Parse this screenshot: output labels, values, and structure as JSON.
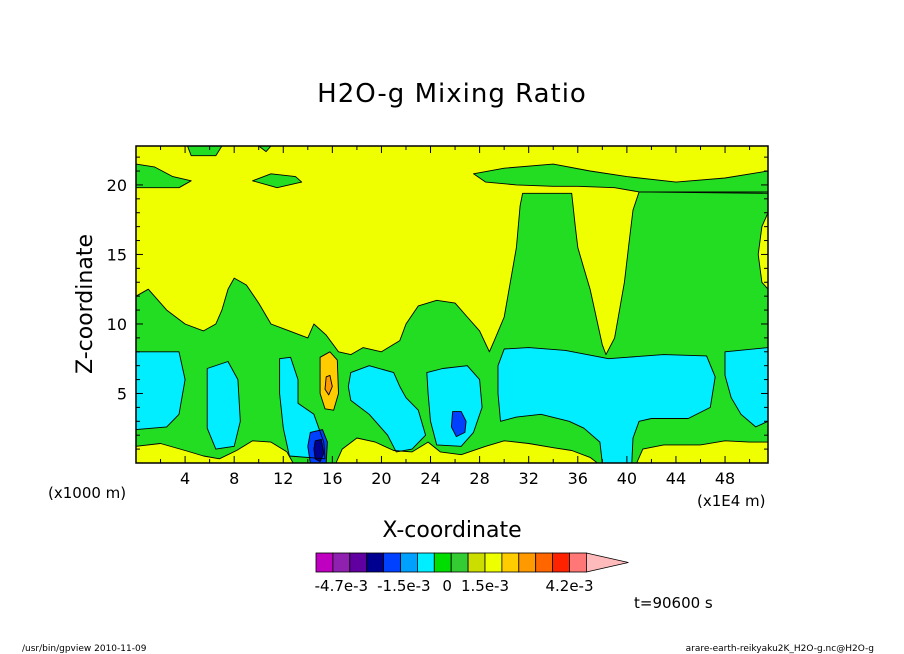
{
  "chart_data": {
    "type": "heatmap",
    "title": "H2O-g Mixing Ratio",
    "xlabel": "X-coordinate",
    "ylabel": "Z-coordinate",
    "x_unit_left": "(x1000 m)",
    "x_unit_right": "(x1E4 m)",
    "xlim": [
      0,
      51.5
    ],
    "ylim": [
      0,
      22.8
    ],
    "x_ticks": [
      "4",
      "8",
      "12",
      "16",
      "20",
      "24",
      "28",
      "32",
      "36",
      "40",
      "44",
      "48"
    ],
    "x_tick_values": [
      4,
      8,
      12,
      16,
      20,
      24,
      28,
      32,
      36,
      40,
      44,
      48
    ],
    "y_ticks": [
      "5",
      "10",
      "15",
      "20"
    ],
    "y_tick_values": [
      5,
      10,
      15,
      20
    ],
    "time_label": "t=90600 s",
    "colorbar": {
      "colors": [
        "#c000c0",
        "#9020b0",
        "#6000a0",
        "#000090",
        "#0040ff",
        "#00a0ff",
        "#00eeff",
        "#00dd00",
        "#33cc33",
        "#ccdd00",
        "#eeff00",
        "#ffcc00",
        "#ff9900",
        "#ff6600",
        "#ff2200",
        "#ff7777",
        "#ffbbbb"
      ],
      "tick_labels": [
        "-4.7e-3",
        "-1.5e-3",
        "0",
        "1.5e-3",
        "4.2e-3"
      ]
    },
    "regions": [
      {
        "label": "upper-yellow",
        "color": "#f0ff00",
        "points": [
          [
            0,
            22.8
          ],
          [
            51.5,
            22.8
          ],
          [
            51.5,
            0
          ],
          [
            0,
            0
          ]
        ]
      },
      {
        "label": "green-layer",
        "color": "#22dd22",
        "points": [
          [
            0,
            12
          ],
          [
            1,
            12.5
          ],
          [
            2.5,
            11
          ],
          [
            4,
            10
          ],
          [
            5.5,
            9.5
          ],
          [
            6.5,
            10
          ],
          [
            7,
            11
          ],
          [
            7.5,
            12.5
          ],
          [
            8,
            13.3
          ],
          [
            9,
            12.8
          ],
          [
            10,
            11.5
          ],
          [
            11,
            10
          ],
          [
            12.5,
            9.5
          ],
          [
            14,
            9
          ],
          [
            14.5,
            10
          ],
          [
            15.5,
            9.2
          ],
          [
            16.5,
            8
          ],
          [
            17.5,
            7.8
          ],
          [
            18.5,
            8.3
          ],
          [
            20,
            8
          ],
          [
            21.5,
            8.8
          ],
          [
            22,
            10
          ],
          [
            23,
            11.3
          ],
          [
            24.5,
            11.7
          ],
          [
            26,
            11.5
          ],
          [
            27,
            10.5
          ],
          [
            28,
            9.5
          ],
          [
            28.8,
            8
          ],
          [
            29.2,
            8.8
          ],
          [
            30,
            10.5
          ],
          [
            30.5,
            13
          ],
          [
            31,
            15.5
          ],
          [
            31.3,
            18.5
          ],
          [
            31.5,
            19.4
          ],
          [
            35.5,
            19.4
          ],
          [
            35.8,
            17
          ],
          [
            36,
            15.5
          ],
          [
            36.5,
            14
          ],
          [
            37,
            12.5
          ],
          [
            37.5,
            10.5
          ],
          [
            38,
            8.5
          ],
          [
            38.3,
            7.8
          ],
          [
            39,
            9
          ],
          [
            39.8,
            13
          ],
          [
            40.2,
            16
          ],
          [
            40.5,
            18.2
          ],
          [
            41,
            19.5
          ],
          [
            51.5,
            19.5
          ],
          [
            51.5,
            0
          ],
          [
            0,
            0
          ]
        ]
      },
      {
        "label": "top-green-band",
        "color": "#22dd22",
        "points": [
          [
            0,
            21.5
          ],
          [
            1.5,
            21.3
          ],
          [
            3,
            20.6
          ],
          [
            4.5,
            20.3
          ],
          [
            3.5,
            19.8
          ],
          [
            0,
            19.8
          ]
        ]
      },
      {
        "label": "top-green-band2",
        "color": "#22dd22",
        "points": [
          [
            27.5,
            20.8
          ],
          [
            30,
            21.2
          ],
          [
            34,
            21.5
          ],
          [
            37,
            21
          ],
          [
            40,
            20.6
          ],
          [
            44,
            20.2
          ],
          [
            48,
            20.5
          ],
          [
            51.5,
            21
          ],
          [
            51.5,
            19.4
          ],
          [
            41,
            19.5
          ],
          [
            39,
            19.8
          ],
          [
            36,
            19.9
          ],
          [
            34,
            19.9
          ],
          [
            31,
            20
          ],
          [
            28.5,
            20.2
          ]
        ]
      },
      {
        "label": "top-green-small",
        "color": "#22dd22",
        "points": [
          [
            9.5,
            20.3
          ],
          [
            11,
            20.8
          ],
          [
            13,
            20.6
          ],
          [
            13.5,
            20.2
          ],
          [
            11.5,
            19.8
          ]
        ]
      },
      {
        "label": "top-green-top",
        "color": "#22dd22",
        "points": [
          [
            4.2,
            22.8
          ],
          [
            7,
            22.8
          ],
          [
            6.5,
            22.1
          ],
          [
            4.5,
            22.1
          ]
        ]
      },
      {
        "label": "top-green-top2",
        "color": "#22dd22",
        "points": [
          [
            10,
            22.8
          ],
          [
            11,
            22.8
          ],
          [
            10.6,
            22.4
          ]
        ]
      },
      {
        "label": "cyan-left",
        "color": "#00eeff",
        "points": [
          [
            0,
            8
          ],
          [
            3.5,
            8
          ],
          [
            4,
            6
          ],
          [
            3.5,
            3.5
          ],
          [
            2.5,
            2.6
          ],
          [
            0,
            2.4
          ]
        ]
      },
      {
        "label": "cyan-2",
        "color": "#00eeff",
        "points": [
          [
            5.8,
            6.8
          ],
          [
            7.5,
            7.3
          ],
          [
            8.3,
            6
          ],
          [
            8.5,
            3
          ],
          [
            8,
            1.2
          ],
          [
            6.5,
            1
          ],
          [
            5.8,
            2.5
          ]
        ]
      },
      {
        "label": "cyan-3",
        "color": "#00eeff",
        "points": [
          [
            11.7,
            7.5
          ],
          [
            12.6,
            7.6
          ],
          [
            13.2,
            6
          ],
          [
            13.2,
            4.3
          ],
          [
            14.5,
            3.5
          ],
          [
            15.3,
            1.5
          ],
          [
            15.4,
            0.3
          ],
          [
            12.5,
            0.5
          ],
          [
            12,
            2.5
          ],
          [
            11.7,
            5
          ]
        ]
      },
      {
        "label": "cyan-4",
        "color": "#00eeff",
        "points": [
          [
            17.5,
            6.5
          ],
          [
            19,
            7
          ],
          [
            21,
            6.5
          ],
          [
            21.5,
            5.5
          ],
          [
            22,
            4.7
          ],
          [
            23,
            3.8
          ],
          [
            23.6,
            2
          ],
          [
            22.5,
            1
          ],
          [
            21.2,
            0.8
          ],
          [
            20.5,
            2
          ],
          [
            19,
            3.5
          ],
          [
            17.5,
            4.5
          ],
          [
            17.3,
            5.5
          ]
        ]
      },
      {
        "label": "cyan-5",
        "color": "#00eeff",
        "points": [
          [
            23.7,
            6.5
          ],
          [
            25,
            6.8
          ],
          [
            27,
            7
          ],
          [
            28,
            6
          ],
          [
            28.2,
            4
          ],
          [
            27.5,
            2.2
          ],
          [
            26.5,
            1.2
          ],
          [
            24.5,
            1.3
          ],
          [
            24,
            3
          ],
          [
            23.8,
            5
          ]
        ]
      },
      {
        "label": "cyan-big",
        "color": "#00eeff",
        "points": [
          [
            30,
            8.2
          ],
          [
            32,
            8.3
          ],
          [
            35,
            8.1
          ],
          [
            38.5,
            7.5
          ],
          [
            40,
            7.6
          ],
          [
            43,
            7.8
          ],
          [
            46.5,
            7.7
          ],
          [
            47.2,
            6.2
          ],
          [
            46.8,
            4
          ],
          [
            45,
            3.2
          ],
          [
            42,
            3.2
          ],
          [
            41,
            3
          ],
          [
            40.5,
            1.8
          ],
          [
            40.4,
            0
          ],
          [
            38,
            0
          ],
          [
            37.8,
            1.5
          ],
          [
            36.5,
            2.5
          ],
          [
            35.3,
            3
          ],
          [
            33,
            3.5
          ],
          [
            31,
            3.3
          ],
          [
            29.7,
            3
          ],
          [
            29.5,
            5
          ],
          [
            29.5,
            7
          ]
        ]
      },
      {
        "label": "cyan-right",
        "color": "#00eeff",
        "points": [
          [
            48,
            8
          ],
          [
            51.5,
            8.3
          ],
          [
            51.5,
            3
          ],
          [
            50.5,
            2.6
          ],
          [
            49.3,
            3.5
          ],
          [
            48.5,
            4.7
          ],
          [
            48,
            6.3
          ]
        ]
      },
      {
        "label": "blue-1",
        "color": "#0040ff",
        "points": [
          [
            14.2,
            2.2
          ],
          [
            15.2,
            2.4
          ],
          [
            15.6,
            1.5
          ],
          [
            15.5,
            0
          ],
          [
            14.2,
            0
          ],
          [
            14,
            1.2
          ]
        ]
      },
      {
        "label": "navy-1",
        "color": "#000090",
        "points": [
          [
            14.6,
            1.6
          ],
          [
            15.1,
            1.7
          ],
          [
            15.3,
            0.7
          ],
          [
            15,
            0.1
          ],
          [
            14.6,
            0.3
          ],
          [
            14.5,
            1
          ]
        ]
      },
      {
        "label": "blue-2",
        "color": "#0040ff",
        "points": [
          [
            25.8,
            3.7
          ],
          [
            26.5,
            3.7
          ],
          [
            26.9,
            3
          ],
          [
            26.8,
            2.2
          ],
          [
            26.1,
            1.9
          ],
          [
            25.7,
            2.6
          ]
        ]
      },
      {
        "label": "orange-1",
        "color": "#ffcc00",
        "points": [
          [
            15,
            7.6
          ],
          [
            15.8,
            8
          ],
          [
            16.4,
            7.4
          ],
          [
            16.5,
            5
          ],
          [
            16.1,
            3.8
          ],
          [
            15.4,
            3.9
          ],
          [
            15,
            5
          ]
        ]
      },
      {
        "label": "orange-inner",
        "color": "#ff9900",
        "points": [
          [
            15.5,
            6.2
          ],
          [
            15.8,
            6.3
          ],
          [
            16,
            5.5
          ],
          [
            15.7,
            4.9
          ],
          [
            15.4,
            5.3
          ]
        ]
      },
      {
        "label": "bottom-yellow-1",
        "color": "#f0ff00",
        "points": [
          [
            0,
            1.2
          ],
          [
            2,
            1.4
          ],
          [
            4,
            0.9
          ],
          [
            5.5,
            0.5
          ],
          [
            6.8,
            0.3
          ],
          [
            8.2,
            0.9
          ],
          [
            9.5,
            1.6
          ],
          [
            11,
            1.5
          ],
          [
            12.3,
            0.8
          ],
          [
            12.8,
            0
          ],
          [
            0,
            0
          ]
        ]
      },
      {
        "label": "bottom-yellow-2",
        "color": "#f0ff00",
        "points": [
          [
            16.3,
            0
          ],
          [
            16.8,
            1
          ],
          [
            18,
            1.8
          ],
          [
            19.5,
            1.5
          ],
          [
            21,
            0.9
          ],
          [
            22.5,
            0.8
          ],
          [
            23.8,
            1.5
          ],
          [
            24.8,
            0.8
          ],
          [
            26.5,
            0.6
          ],
          [
            28.5,
            1.2
          ],
          [
            30,
            1.6
          ],
          [
            32,
            1.4
          ],
          [
            34,
            1.1
          ],
          [
            35.5,
            0.9
          ],
          [
            37,
            0.4
          ],
          [
            37.6,
            0
          ]
        ]
      },
      {
        "label": "bottom-yellow-3",
        "color": "#f0ff00",
        "points": [
          [
            40.8,
            0
          ],
          [
            41.3,
            1
          ],
          [
            43,
            1.3
          ],
          [
            46,
            1.3
          ],
          [
            48,
            1.6
          ],
          [
            50,
            1.5
          ],
          [
            51.5,
            1.5
          ],
          [
            51.5,
            0
          ]
        ]
      },
      {
        "label": "right-yellow-edge",
        "color": "#f0ff00",
        "points": [
          [
            51.5,
            18
          ],
          [
            51,
            17
          ],
          [
            50.7,
            15
          ],
          [
            51,
            13
          ],
          [
            51.5,
            12.5
          ]
        ]
      }
    ]
  },
  "footer": {
    "left": "/usr/bin/gpview  2010-11-09",
    "right": "arare-earth-reikyaku2K_H2O-g.nc@H2O-g"
  }
}
